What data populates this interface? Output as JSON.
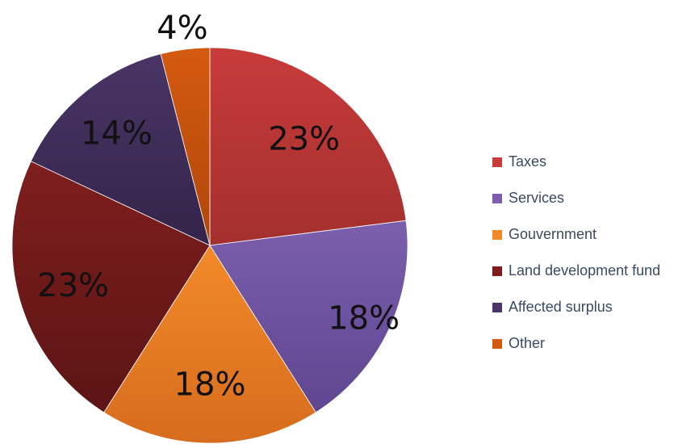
{
  "chart_data": {
    "type": "pie",
    "slices": [
      {
        "label": "Taxes",
        "value": 23,
        "display": "23%",
        "color": "#c83b3b",
        "color_dark": "#a3302e"
      },
      {
        "label": "Services",
        "value": 18,
        "display": "18%",
        "color": "#7b5fae",
        "color_dark": "#5f4690"
      },
      {
        "label": "Gouvernment",
        "value": 18,
        "display": "18%",
        "color": "#f28a2a",
        "color_dark": "#d66c1d"
      },
      {
        "label": "Land development fund",
        "value": 23,
        "display": "23%",
        "color": "#7f1e1e",
        "color_dark": "#5c1414"
      },
      {
        "label": "Affected surplus",
        "value": 14,
        "display": "14%",
        "color": "#4a3566",
        "color_dark": "#33244a"
      },
      {
        "label": "Other",
        "value": 4,
        "display": "4%",
        "color": "#d45a10",
        "color_dark": "#b0460a"
      }
    ],
    "legend_position": "right",
    "start_angle_deg": 0,
    "direction": "clockwise"
  }
}
